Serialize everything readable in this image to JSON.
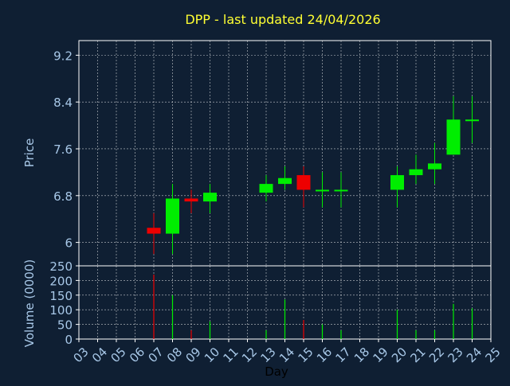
{
  "title": "DPP - last updated 24/04/2026",
  "colors": {
    "background": "#0f1f33",
    "title": "#ffff33",
    "axis_text": "#a8c8e8",
    "frame": "#ffffff",
    "grid": "#ffffff",
    "up": "#00ee00",
    "down": "#ee0000",
    "axis_label": "#000000"
  },
  "chart_data": [
    {
      "type": "candlestick",
      "title": "DPP - last updated 24/04/2026",
      "ylabel": "Price",
      "ylim": [
        5.6,
        9.45
      ],
      "yticks": [
        "6",
        "6.8",
        "7.6",
        "8.4",
        "9.2"
      ],
      "grid": true,
      "candles": [
        {
          "day": "07",
          "open": 6.25,
          "high": 6.5,
          "low": 5.8,
          "close": 6.15
        },
        {
          "day": "08",
          "open": 6.15,
          "high": 7.0,
          "low": 5.8,
          "close": 6.75
        },
        {
          "day": "09",
          "open": 6.75,
          "high": 6.9,
          "low": 6.5,
          "close": 6.7
        },
        {
          "day": "10",
          "open": 6.7,
          "high": 7.0,
          "low": 6.5,
          "close": 6.85
        },
        {
          "day": "13",
          "open": 6.85,
          "high": 7.15,
          "low": 6.7,
          "close": 7.0
        },
        {
          "day": "14",
          "open": 7.0,
          "high": 7.3,
          "low": 6.9,
          "close": 7.1
        },
        {
          "day": "15",
          "open": 7.15,
          "high": 7.3,
          "low": 6.6,
          "close": 6.9
        },
        {
          "day": "16",
          "open": 6.9,
          "high": 7.2,
          "low": 6.6,
          "close": 6.9
        },
        {
          "day": "17",
          "open": 6.9,
          "high": 7.2,
          "low": 6.6,
          "close": 6.9
        },
        {
          "day": "20",
          "open": 6.9,
          "high": 7.3,
          "low": 6.6,
          "close": 7.15
        },
        {
          "day": "21",
          "open": 7.15,
          "high": 7.5,
          "low": 7.0,
          "close": 7.25
        },
        {
          "day": "22",
          "open": 7.25,
          "high": 7.7,
          "low": 7.0,
          "close": 7.35
        },
        {
          "day": "23",
          "open": 7.5,
          "high": 8.5,
          "low": 7.5,
          "close": 8.1
        },
        {
          "day": "24",
          "open": 8.1,
          "high": 8.5,
          "low": 7.7,
          "close": 8.1
        }
      ]
    },
    {
      "type": "bar",
      "ylabel": "Volume (0000)",
      "xlabel": "Day",
      "ylim": [
        0,
        250
      ],
      "yticks": [
        "0",
        "50",
        "100",
        "150",
        "200",
        "250"
      ],
      "categories": [
        "03",
        "04",
        "05",
        "06",
        "07",
        "08",
        "09",
        "10",
        "11",
        "12",
        "13",
        "14",
        "15",
        "16",
        "17",
        "18",
        "19",
        "20",
        "21",
        "22",
        "23",
        "24",
        "25"
      ],
      "values": [
        0,
        0,
        0,
        0,
        220,
        150,
        30,
        60,
        0,
        0,
        30,
        135,
        65,
        50,
        30,
        0,
        0,
        100,
        30,
        30,
        120,
        105,
        0
      ],
      "directions": [
        "",
        "",
        "",
        "",
        "down",
        "up",
        "down",
        "up",
        "",
        "",
        "up",
        "up",
        "down",
        "up",
        "up",
        "",
        "",
        "up",
        "up",
        "up",
        "up",
        "up",
        ""
      ],
      "grid": true
    }
  ]
}
